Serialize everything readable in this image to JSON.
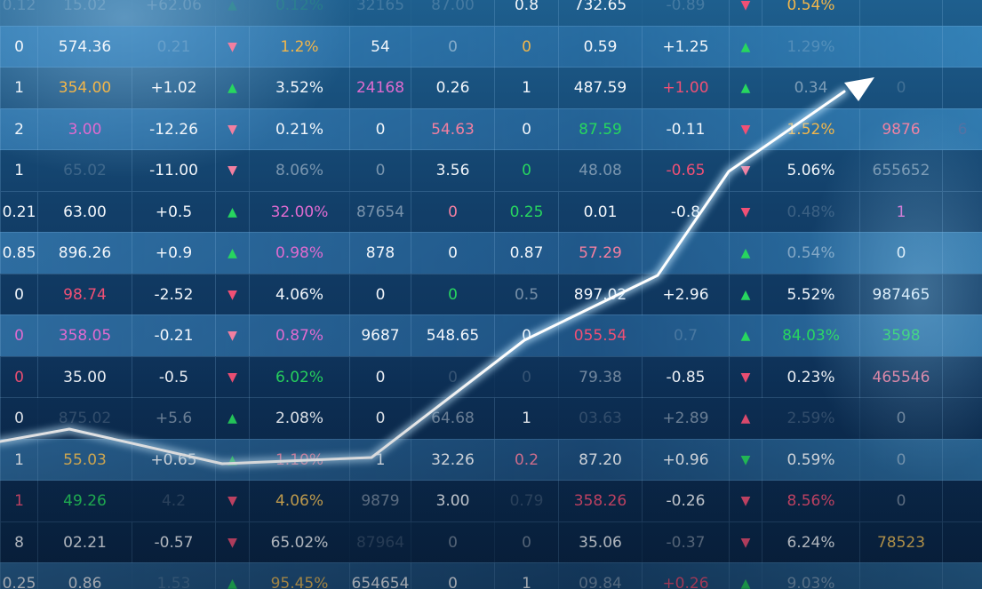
{
  "columns": 15,
  "rows": [
    {
      "highlight": false,
      "cells": [
        [
          "0.12",
          "w",
          "faint"
        ],
        [
          "15.02",
          "w",
          "faint"
        ],
        [
          "+62.06",
          "w",
          "faint"
        ],
        [
          "▲",
          "g",
          "faint"
        ],
        [
          "0.12%",
          "g",
          "faint"
        ],
        [
          "32165",
          "w",
          "faint"
        ],
        [
          "87.00",
          "w",
          "faint"
        ],
        [
          "0.8",
          "w",
          ""
        ],
        [
          "732.65",
          "w",
          ""
        ],
        [
          "-0.89",
          "w",
          "faint"
        ],
        [
          "▼",
          "r",
          ""
        ],
        [
          "0.54%",
          "o",
          ""
        ],
        [
          "",
          "w",
          ""
        ],
        [
          "",
          "w",
          ""
        ],
        [
          "",
          "w",
          ""
        ]
      ]
    },
    {
      "highlight": true,
      "cells": [
        [
          "0",
          "w",
          ""
        ],
        [
          "574.36",
          "w",
          ""
        ],
        [
          "0.21",
          "w",
          "faint"
        ],
        [
          "▼",
          "pk",
          ""
        ],
        [
          "1.2%",
          "o",
          ""
        ],
        [
          "54",
          "w",
          ""
        ],
        [
          "0",
          "w",
          "dim"
        ],
        [
          "0",
          "o",
          ""
        ],
        [
          "0.59",
          "w",
          ""
        ],
        [
          "+1.25",
          "w",
          ""
        ],
        [
          "▲",
          "g",
          ""
        ],
        [
          "1.29%",
          "w",
          "faint"
        ],
        [
          "",
          "w",
          ""
        ],
        [
          "",
          "w",
          ""
        ],
        [
          "",
          "w",
          ""
        ]
      ]
    },
    {
      "highlight": false,
      "cells": [
        [
          "1",
          "w",
          ""
        ],
        [
          "354.00",
          "o",
          ""
        ],
        [
          "+1.02",
          "w",
          ""
        ],
        [
          "▲",
          "g",
          ""
        ],
        [
          "3.52%",
          "w",
          ""
        ],
        [
          "24168",
          "p",
          ""
        ],
        [
          "0.26",
          "w",
          ""
        ],
        [
          "1",
          "w",
          ""
        ],
        [
          "487.59",
          "w",
          ""
        ],
        [
          "+1.00",
          "r",
          ""
        ],
        [
          "▲",
          "g",
          ""
        ],
        [
          "0.34",
          "w",
          "dim"
        ],
        [
          "0",
          "w",
          "faint"
        ],
        [
          "",
          "w",
          ""
        ],
        [
          "",
          "w",
          ""
        ]
      ]
    },
    {
      "highlight": true,
      "cells": [
        [
          "2",
          "w",
          ""
        ],
        [
          "3.00",
          "p",
          ""
        ],
        [
          "-12.26",
          "w",
          ""
        ],
        [
          "▼",
          "pk",
          ""
        ],
        [
          "0.21%",
          "w",
          ""
        ],
        [
          "0",
          "w",
          ""
        ],
        [
          "54.63",
          "pk",
          ""
        ],
        [
          "0",
          "w",
          ""
        ],
        [
          "87.59",
          "g",
          ""
        ],
        [
          "-0.11",
          "w",
          ""
        ],
        [
          "▼",
          "r",
          ""
        ],
        [
          "1.52%",
          "o",
          ""
        ],
        [
          "9876",
          "pk",
          ""
        ],
        [
          "6",
          "r",
          "faint"
        ],
        [
          "",
          "w",
          ""
        ]
      ]
    },
    {
      "highlight": false,
      "cells": [
        [
          "1",
          "w",
          ""
        ],
        [
          "65.02",
          "w",
          "faint"
        ],
        [
          "-11.00",
          "w",
          ""
        ],
        [
          "▼",
          "pk",
          ""
        ],
        [
          "8.06%",
          "w",
          "dim"
        ],
        [
          "0",
          "w",
          "dim"
        ],
        [
          "3.56",
          "w",
          ""
        ],
        [
          "0",
          "g",
          ""
        ],
        [
          "48.08",
          "w",
          "dim"
        ],
        [
          "-0.65",
          "r",
          ""
        ],
        [
          "▼",
          "pk",
          ""
        ],
        [
          "5.06%",
          "w",
          ""
        ],
        [
          "655652",
          "w",
          "dim"
        ],
        [
          "",
          "w",
          ""
        ],
        [
          "",
          "w",
          ""
        ]
      ]
    },
    {
      "highlight": false,
      "cells": [
        [
          "0.21",
          "w",
          ""
        ],
        [
          "63.00",
          "w",
          ""
        ],
        [
          "+0.5",
          "w",
          ""
        ],
        [
          "▲",
          "g",
          ""
        ],
        [
          "32.00%",
          "p",
          ""
        ],
        [
          "87654",
          "w",
          "dim"
        ],
        [
          "0",
          "pk",
          ""
        ],
        [
          "0.25",
          "g",
          ""
        ],
        [
          "0.01",
          "w",
          ""
        ],
        [
          "-0.8",
          "w",
          ""
        ],
        [
          "▼",
          "r",
          ""
        ],
        [
          "0.48%",
          "w",
          "faint"
        ],
        [
          "1",
          "p",
          ""
        ],
        [
          "",
          "w",
          ""
        ],
        [
          "",
          "w",
          ""
        ]
      ]
    },
    {
      "highlight": true,
      "cells": [
        [
          "0.85",
          "w",
          ""
        ],
        [
          "896.26",
          "w",
          ""
        ],
        [
          "+0.9",
          "w",
          ""
        ],
        [
          "▲",
          "g",
          ""
        ],
        [
          "0.98%",
          "p",
          ""
        ],
        [
          "878",
          "w",
          ""
        ],
        [
          "0",
          "w",
          ""
        ],
        [
          "0.87",
          "w",
          ""
        ],
        [
          "57.29",
          "pk",
          ""
        ],
        [
          "",
          "w",
          ""
        ],
        [
          "▲",
          "g",
          ""
        ],
        [
          "0.54%",
          "w",
          "dim"
        ],
        [
          "0",
          "w",
          ""
        ],
        [
          "",
          "w",
          ""
        ],
        [
          "",
          "w",
          ""
        ]
      ]
    },
    {
      "highlight": false,
      "cells": [
        [
          "0",
          "w",
          ""
        ],
        [
          "98.74",
          "r",
          ""
        ],
        [
          "-2.52",
          "w",
          ""
        ],
        [
          "▼",
          "r",
          ""
        ],
        [
          "4.06%",
          "w",
          ""
        ],
        [
          "0",
          "w",
          ""
        ],
        [
          "0",
          "g",
          ""
        ],
        [
          "0.5",
          "w",
          "dim"
        ],
        [
          "897.02",
          "w",
          ""
        ],
        [
          "+2.96",
          "w",
          ""
        ],
        [
          "▲",
          "g",
          ""
        ],
        [
          "5.52%",
          "w",
          ""
        ],
        [
          "987465",
          "w",
          ""
        ],
        [
          "",
          "w",
          ""
        ],
        [
          "",
          "w",
          ""
        ]
      ]
    },
    {
      "highlight": true,
      "cells": [
        [
          "0",
          "p",
          ""
        ],
        [
          "358.05",
          "p",
          ""
        ],
        [
          "-0.21",
          "w",
          ""
        ],
        [
          "▼",
          "pk",
          ""
        ],
        [
          "0.87%",
          "p",
          ""
        ],
        [
          "9687",
          "w",
          ""
        ],
        [
          "548.65",
          "w",
          ""
        ],
        [
          "0",
          "w",
          ""
        ],
        [
          "055.54",
          "r",
          ""
        ],
        [
          "0.7",
          "w",
          "faint"
        ],
        [
          "▲",
          "g",
          ""
        ],
        [
          "84.03%",
          "g",
          ""
        ],
        [
          "3598",
          "g",
          ""
        ],
        [
          "",
          "w",
          ""
        ],
        [
          "",
          "w",
          ""
        ]
      ]
    },
    {
      "highlight": false,
      "cells": [
        [
          "0",
          "r",
          ""
        ],
        [
          "35.00",
          "w",
          ""
        ],
        [
          "-0.5",
          "w",
          ""
        ],
        [
          "▼",
          "r",
          ""
        ],
        [
          "6.02%",
          "g",
          ""
        ],
        [
          "0",
          "w",
          ""
        ],
        [
          "0",
          "w",
          "faint"
        ],
        [
          "0",
          "w",
          "faint"
        ],
        [
          "79.38",
          "w",
          "dim"
        ],
        [
          "-0.85",
          "w",
          ""
        ],
        [
          "▼",
          "r",
          ""
        ],
        [
          "0.23%",
          "w",
          ""
        ],
        [
          "465546",
          "pk",
          ""
        ],
        [
          "",
          "w",
          ""
        ],
        [
          "",
          "w",
          ""
        ]
      ]
    },
    {
      "highlight": false,
      "cells": [
        [
          "0",
          "w",
          ""
        ],
        [
          "875.02",
          "w",
          "faint"
        ],
        [
          "+5.6",
          "w",
          "dim"
        ],
        [
          "▲",
          "g",
          ""
        ],
        [
          "2.08%",
          "w",
          ""
        ],
        [
          "0",
          "w",
          ""
        ],
        [
          "64.68",
          "w",
          "dim"
        ],
        [
          "1",
          "w",
          ""
        ],
        [
          "03.63",
          "w",
          "faint"
        ],
        [
          "+2.89",
          "w",
          "dim"
        ],
        [
          "▲",
          "r",
          ""
        ],
        [
          "2.59%",
          "w",
          "faint"
        ],
        [
          "0",
          "w",
          "dim"
        ],
        [
          "",
          "w",
          ""
        ],
        [
          "",
          "w",
          ""
        ]
      ]
    },
    {
      "highlight": true,
      "cells": [
        [
          "1",
          "w",
          ""
        ],
        [
          "55.03",
          "y",
          ""
        ],
        [
          "+0.65",
          "w",
          ""
        ],
        [
          "▲",
          "g",
          ""
        ],
        [
          "1.10%",
          "pk",
          ""
        ],
        [
          "1",
          "w",
          ""
        ],
        [
          "32.26",
          "w",
          ""
        ],
        [
          "0.2",
          "pk",
          ""
        ],
        [
          "87.20",
          "w",
          ""
        ],
        [
          "+0.96",
          "w",
          ""
        ],
        [
          "▼",
          "g",
          ""
        ],
        [
          "0.59%",
          "w",
          ""
        ],
        [
          "0",
          "w",
          "dim"
        ],
        [
          "",
          "w",
          ""
        ],
        [
          "",
          "w",
          ""
        ]
      ]
    },
    {
      "highlight": false,
      "cells": [
        [
          "1",
          "r",
          ""
        ],
        [
          "49.26",
          "g",
          ""
        ],
        [
          "4.2",
          "w",
          "faint"
        ],
        [
          "▼",
          "r",
          ""
        ],
        [
          "4.06%",
          "y",
          ""
        ],
        [
          "9879",
          "w",
          "dim"
        ],
        [
          "3.00",
          "w",
          ""
        ],
        [
          "0.79",
          "w",
          "faint"
        ],
        [
          "358.26",
          "r",
          ""
        ],
        [
          "-0.26",
          "w",
          ""
        ],
        [
          "▼",
          "r",
          ""
        ],
        [
          "8.56%",
          "r",
          ""
        ],
        [
          "0",
          "w",
          "dim"
        ],
        [
          "",
          "w",
          ""
        ],
        [
          "",
          "w",
          ""
        ]
      ]
    },
    {
      "highlight": false,
      "cells": [
        [
          "8",
          "w",
          ""
        ],
        [
          "02.21",
          "w",
          ""
        ],
        [
          "-0.57",
          "w",
          ""
        ],
        [
          "▼",
          "r",
          ""
        ],
        [
          "65.02%",
          "w",
          ""
        ],
        [
          "87964",
          "w",
          "faint"
        ],
        [
          "0",
          "w",
          "dim"
        ],
        [
          "0",
          "w",
          "dim"
        ],
        [
          "35.06",
          "w",
          ""
        ],
        [
          "-0.37",
          "w",
          "dim"
        ],
        [
          "▼",
          "r",
          ""
        ],
        [
          "6.24%",
          "w",
          ""
        ],
        [
          "78523",
          "y",
          ""
        ],
        [
          "",
          "w",
          ""
        ],
        [
          "",
          "w",
          ""
        ]
      ]
    },
    {
      "highlight": true,
      "cells": [
        [
          "0.25",
          "w",
          ""
        ],
        [
          "0.86",
          "w",
          ""
        ],
        [
          "1.53",
          "w",
          "faint"
        ],
        [
          "▲",
          "g",
          ""
        ],
        [
          "95.45%",
          "y",
          ""
        ],
        [
          "654654",
          "w",
          ""
        ],
        [
          "0",
          "w",
          ""
        ],
        [
          "1",
          "w",
          ""
        ],
        [
          "09.84",
          "w",
          "dim"
        ],
        [
          "+0.26",
          "r",
          ""
        ],
        [
          "▲",
          "g",
          ""
        ],
        [
          "9.03%",
          "w",
          "dim"
        ],
        [
          "",
          "w",
          ""
        ],
        [
          "",
          "w",
          ""
        ],
        [
          "",
          "w",
          ""
        ]
      ]
    }
  ],
  "trend_line": {
    "color": "#ffffff",
    "glow": "#bfe6ff"
  }
}
